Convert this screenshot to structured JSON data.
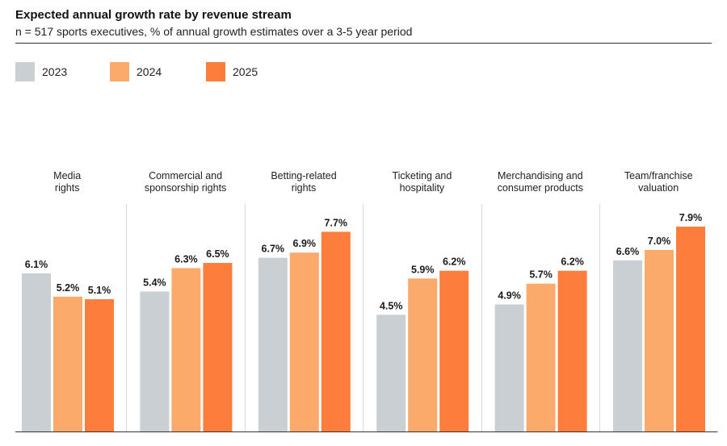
{
  "title": "Expected annual growth rate by revenue stream",
  "subtitle": "n = 517 sports executives, % of annual growth estimates over a 3-5 year period",
  "chart_data": {
    "type": "bar",
    "title": "Expected annual growth rate by revenue stream",
    "subtitle": "n = 517 sports executives, % of annual growth estimates over a 3-5 year period",
    "categories": [
      [
        "Media",
        "rights"
      ],
      [
        "Commercial and",
        "sponsorship rights"
      ],
      [
        "Betting-related",
        "rights"
      ],
      [
        "Ticketing and",
        "hospitality"
      ],
      [
        "Merchandising and",
        "consumer products"
      ],
      [
        "Team/franchise",
        "valuation"
      ]
    ],
    "series": [
      {
        "name": "2023",
        "color": "#c9cfd3",
        "values": [
          6.1,
          5.4,
          6.7,
          4.5,
          4.9,
          6.6
        ],
        "labels": [
          "6.1%",
          "5.4%",
          "6.7%",
          "4.5%",
          "4.9%",
          "6.6%"
        ]
      },
      {
        "name": "2024",
        "color": "#fca96c",
        "values": [
          5.2,
          6.3,
          6.9,
          5.9,
          5.7,
          7.0
        ],
        "labels": [
          "5.2%",
          "6.3%",
          "6.9%",
          "5.9%",
          "5.7%",
          "7.0%"
        ]
      },
      {
        "name": "2025",
        "color": "#fd7d3c",
        "values": [
          5.1,
          6.5,
          7.7,
          6.2,
          6.2,
          7.9
        ],
        "labels": [
          "5.1%",
          "6.5%",
          "7.7%",
          "6.2%",
          "6.2%",
          "7.9%"
        ]
      }
    ],
    "ylim": [
      0,
      7.9
    ],
    "legend": "top-left",
    "grid": false
  }
}
